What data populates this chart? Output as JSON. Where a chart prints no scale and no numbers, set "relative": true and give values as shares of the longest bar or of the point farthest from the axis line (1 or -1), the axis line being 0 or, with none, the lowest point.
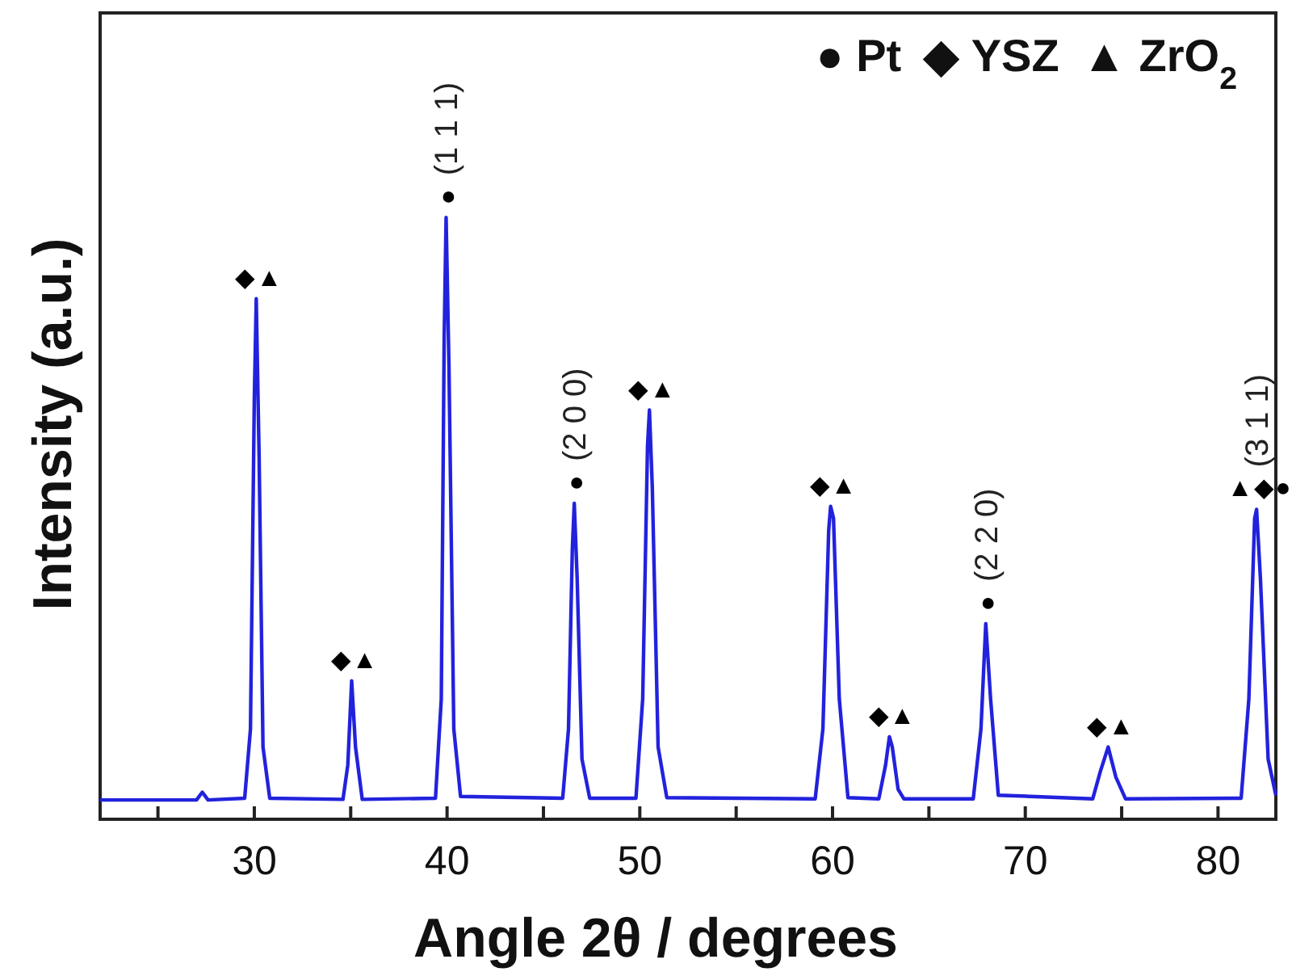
{
  "chart_data": {
    "type": "line",
    "relative": true,
    "xlabel": "Angle 2θ / degrees",
    "ylabel": "Intensity (a.u.)",
    "xlim": [
      22,
      83
    ],
    "xticks": [
      {
        "value": 25,
        "label": null
      },
      30,
      {
        "value": 35,
        "label": null
      },
      40,
      {
        "value": 45,
        "label": null
      },
      50,
      {
        "value": 55,
        "label": null
      },
      60,
      {
        "value": 65,
        "label": null
      },
      70,
      {
        "value": 75,
        "label": null
      },
      80
    ],
    "series": [
      {
        "color": "#2222dd",
        "x": [
          22,
          27.0,
          27.3,
          27.6,
          29.5,
          29.8,
          30.0,
          30.1,
          30.25,
          30.45,
          30.8,
          34.6,
          34.85,
          35.05,
          35.25,
          35.6,
          39.4,
          39.7,
          39.85,
          39.95,
          40.1,
          40.35,
          40.7,
          46.0,
          46.3,
          46.5,
          46.6,
          46.75,
          47.0,
          47.4,
          49.8,
          50.15,
          50.4,
          50.5,
          50.65,
          50.95,
          51.4,
          59.1,
          59.5,
          59.8,
          59.9,
          60.05,
          60.35,
          60.8,
          62.4,
          62.75,
          62.95,
          63.1,
          63.4,
          63.7,
          67.3,
          67.7,
          67.95,
          68.2,
          68.6,
          73.5,
          73.9,
          74.3,
          74.7,
          75.2,
          81.2,
          81.6,
          81.9,
          82.0,
          82.2,
          82.6,
          83
        ],
        "values": [
          0.032,
          0.032,
          0.045,
          0.032,
          0.035,
          0.15,
          0.7,
          0.865,
          0.6,
          0.12,
          0.035,
          0.033,
          0.09,
          0.23,
          0.12,
          0.033,
          0.035,
          0.2,
          0.8,
          1,
          0.75,
          0.15,
          0.038,
          0.035,
          0.15,
          0.45,
          0.525,
          0.4,
          0.1,
          0.035,
          0.035,
          0.2,
          0.62,
          0.68,
          0.55,
          0.12,
          0.036,
          0.034,
          0.15,
          0.48,
          0.52,
          0.5,
          0.2,
          0.036,
          0.034,
          0.09,
          0.137,
          0.12,
          0.05,
          0.034,
          0.034,
          0.15,
          0.325,
          0.2,
          0.04,
          0.034,
          0.08,
          0.12,
          0.07,
          0.034,
          0.035,
          0.2,
          0.5,
          0.515,
          0.4,
          0.1,
          0.04
        ]
      }
    ],
    "annotations": [
      "● Pt",
      "◆ YSZ",
      "▲ ZrO$_{2}$",
      {
        "text": "◆▲",
        "x": 30.1,
        "y": 0.865
      },
      {
        "text": "◆▲",
        "x": 35.05,
        "y": 0.23
      },
      {
        "text": "●",
        "x": 39.95,
        "y": 1
      },
      {
        "text": "(1 1 1)",
        "x": 39.95,
        "y": 1
      },
      {
        "text": "●",
        "x": 46.6,
        "y": 0.525
      },
      {
        "text": "(2 0 0)",
        "x": 46.6,
        "y": 0.525
      },
      {
        "text": "◆▲",
        "x": 50.5,
        "y": 0.68
      },
      {
        "text": "◆▲",
        "x": 59.9,
        "y": 0.52
      },
      {
        "text": "◆▲",
        "x": 62.95,
        "y": 0.137
      },
      {
        "text": "●",
        "x": 67.95,
        "y": 0.325
      },
      {
        "text": "(2 2 0)",
        "x": 67.95,
        "y": 0.325
      },
      {
        "text": "◆▲",
        "x": 74.3,
        "y": 0.12
      },
      {
        "text": "▲◆●",
        "x": 82.0,
        "y": 0.515
      },
      {
        "text": "(3 1 1)",
        "x": 82.0,
        "y": 0.515
      }
    ]
  }
}
